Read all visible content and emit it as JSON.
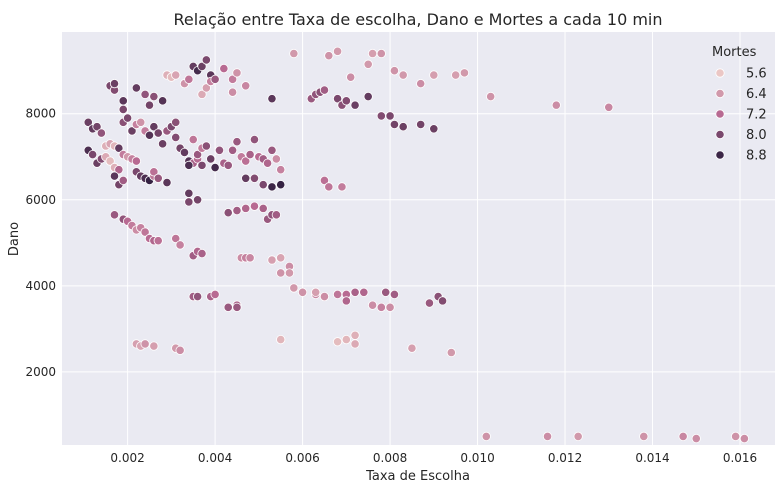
{
  "chart_data": {
    "type": "scatter",
    "title": "Relação entre Taxa de escolha, Dano e Mortes a cada 10 min",
    "xlabel": "Taxa de Escolha",
    "ylabel": "Dano",
    "xlim": [
      0.0005,
      0.0168
    ],
    "ylim": [
      300,
      9900
    ],
    "xticks": [
      0.002,
      0.004,
      0.006,
      0.008,
      0.01,
      0.012,
      0.014,
      0.016
    ],
    "xtick_labels": [
      "0.002",
      "0.004",
      "0.006",
      "0.008",
      "0.010",
      "0.012",
      "0.014",
      "0.016"
    ],
    "yticks": [
      2000,
      4000,
      6000,
      8000
    ],
    "ytick_labels": [
      "2000",
      "4000",
      "6000",
      "8000"
    ],
    "grid": true,
    "legend": {
      "title": "Mortes",
      "placement": "top-right",
      "entries": [
        {
          "label": "5.6",
          "value": 5.6
        },
        {
          "label": "6.4",
          "value": 6.4
        },
        {
          "label": "7.2",
          "value": 7.2
        },
        {
          "label": "8.0",
          "value": 8.0
        },
        {
          "label": "8.8",
          "value": 8.8
        }
      ]
    },
    "colors": {
      "background": "#eaeaf2",
      "grid": "#ffffff",
      "hue_low": "#f1d3cb",
      "hue_high": "#2d1e3e"
    },
    "points": [
      [
        0.0016,
        8650,
        8.0
      ],
      [
        0.0017,
        8550,
        7.9
      ],
      [
        0.0017,
        8700,
        8.2
      ],
      [
        0.0019,
        8300,
        8.4
      ],
      [
        0.0019,
        8100,
        8.0
      ],
      [
        0.0022,
        8600,
        8.3
      ],
      [
        0.0024,
        8450,
        7.7
      ],
      [
        0.0025,
        8200,
        8.1
      ],
      [
        0.0026,
        8400,
        7.8
      ],
      [
        0.0028,
        8300,
        8.5
      ],
      [
        0.0029,
        8900,
        6.0
      ],
      [
        0.003,
        8850,
        5.8
      ],
      [
        0.0031,
        8900,
        6.2
      ],
      [
        0.0033,
        8700,
        6.5
      ],
      [
        0.0034,
        8800,
        7.0
      ],
      [
        0.0035,
        9100,
        8.3
      ],
      [
        0.0036,
        9000,
        8.7
      ],
      [
        0.0037,
        9100,
        8.2
      ],
      [
        0.0038,
        9250,
        8.0
      ],
      [
        0.0039,
        8900,
        8.4
      ],
      [
        0.0037,
        8450,
        6.1
      ],
      [
        0.0038,
        8600,
        6.3
      ],
      [
        0.0039,
        8750,
        6.8
      ],
      [
        0.004,
        8800,
        7.6
      ],
      [
        0.0042,
        9050,
        7.2
      ],
      [
        0.0044,
        8800,
        6.9
      ],
      [
        0.0045,
        8950,
        6.5
      ],
      [
        0.0044,
        8500,
        6.6
      ],
      [
        0.0047,
        8650,
        6.7
      ],
      [
        0.0053,
        8350,
        8.4
      ],
      [
        0.0058,
        9400,
        6.4
      ],
      [
        0.0066,
        9350,
        6.5
      ],
      [
        0.0068,
        9450,
        6.4
      ],
      [
        0.0071,
        8850,
        6.6
      ],
      [
        0.0075,
        9150,
        6.4
      ],
      [
        0.0076,
        9400,
        6.3
      ],
      [
        0.0078,
        9400,
        6.5
      ],
      [
        0.0062,
        8350,
        7.6
      ],
      [
        0.0063,
        8450,
        7.7
      ],
      [
        0.0064,
        8500,
        7.8
      ],
      [
        0.0065,
        8550,
        7.5
      ],
      [
        0.0068,
        8350,
        8.0
      ],
      [
        0.0069,
        8200,
        7.8
      ],
      [
        0.007,
        8300,
        7.9
      ],
      [
        0.0072,
        8200,
        8.2
      ],
      [
        0.0075,
        8400,
        8.3
      ],
      [
        0.0078,
        7950,
        7.9
      ],
      [
        0.008,
        7950,
        8.0
      ],
      [
        0.0081,
        7750,
        8.1
      ],
      [
        0.0083,
        7700,
        8.2
      ],
      [
        0.0081,
        9000,
        6.5
      ],
      [
        0.0083,
        8900,
        6.4
      ],
      [
        0.0087,
        8700,
        6.6
      ],
      [
        0.009,
        8900,
        6.3
      ],
      [
        0.0087,
        7750,
        8.1
      ],
      [
        0.009,
        7650,
        8.2
      ],
      [
        0.0095,
        8900,
        6.3
      ],
      [
        0.0097,
        8950,
        6.4
      ],
      [
        0.0103,
        8400,
        6.5
      ],
      [
        0.0118,
        8200,
        6.6
      ],
      [
        0.013,
        8150,
        6.7
      ],
      [
        0.0011,
        7800,
        8.2
      ],
      [
        0.0012,
        7650,
        8.3
      ],
      [
        0.0013,
        7700,
        8.1
      ],
      [
        0.0014,
        7550,
        7.7
      ],
      [
        0.0015,
        7250,
        6.0
      ],
      [
        0.0016,
        7300,
        6.2
      ],
      [
        0.0017,
        7250,
        5.9
      ],
      [
        0.0018,
        7200,
        8.3
      ],
      [
        0.0011,
        7150,
        8.6
      ],
      [
        0.0012,
        7050,
        8.0
      ],
      [
        0.0013,
        6850,
        8.2
      ],
      [
        0.0014,
        6950,
        7.9
      ],
      [
        0.0015,
        7000,
        6.1
      ],
      [
        0.0016,
        6900,
        5.8
      ],
      [
        0.0017,
        6750,
        6.0
      ],
      [
        0.0018,
        6700,
        7.3
      ],
      [
        0.0017,
        6550,
        8.4
      ],
      [
        0.0018,
        6350,
        8.1
      ],
      [
        0.0019,
        6450,
        7.5
      ],
      [
        0.0019,
        7050,
        6.9
      ],
      [
        0.002,
        7000,
        6.4
      ],
      [
        0.0021,
        6950,
        6.8
      ],
      [
        0.0022,
        6900,
        7.2
      ],
      [
        0.0022,
        6650,
        8.0
      ],
      [
        0.0023,
        6550,
        8.3
      ],
      [
        0.0024,
        6500,
        8.6
      ],
      [
        0.0025,
        6450,
        8.9
      ],
      [
        0.0026,
        6550,
        7.0
      ],
      [
        0.0026,
        6650,
        7.1
      ],
      [
        0.0027,
        6500,
        7.6
      ],
      [
        0.0029,
        6400,
        8.4
      ],
      [
        0.0019,
        7800,
        7.8
      ],
      [
        0.002,
        7900,
        8.0
      ],
      [
        0.0021,
        7600,
        8.2
      ],
      [
        0.0022,
        7750,
        6.8
      ],
      [
        0.0023,
        7800,
        6.5
      ],
      [
        0.0024,
        7600,
        6.9
      ],
      [
        0.0025,
        7500,
        8.5
      ],
      [
        0.0026,
        7700,
        8.3
      ],
      [
        0.0027,
        7550,
        8.1
      ],
      [
        0.0028,
        7300,
        8.2
      ],
      [
        0.0029,
        7600,
        7.6
      ],
      [
        0.003,
        7700,
        8.0
      ],
      [
        0.0031,
        7800,
        7.8
      ],
      [
        0.0031,
        7450,
        7.9
      ],
      [
        0.0032,
        7200,
        8.1
      ],
      [
        0.0033,
        7100,
        8.3
      ],
      [
        0.0034,
        6900,
        8.5
      ],
      [
        0.0035,
        6850,
        7.4
      ],
      [
        0.0036,
        6950,
        7.2
      ],
      [
        0.0037,
        6800,
        8.0
      ],
      [
        0.0034,
        6800,
        8.6
      ],
      [
        0.0036,
        7050,
        7.6
      ],
      [
        0.0035,
        7400,
        7.0
      ],
      [
        0.0037,
        7200,
        6.9
      ],
      [
        0.0038,
        7250,
        7.8
      ],
      [
        0.0039,
        6950,
        8.2
      ],
      [
        0.004,
        6750,
        8.7
      ],
      [
        0.0041,
        7150,
        7.7
      ],
      [
        0.0042,
        6850,
        7.4
      ],
      [
        0.0043,
        6800,
        7.6
      ],
      [
        0.0044,
        7150,
        7.5
      ],
      [
        0.0045,
        7350,
        7.6
      ],
      [
        0.0046,
        7000,
        6.9
      ],
      [
        0.0047,
        6900,
        7.1
      ],
      [
        0.0048,
        7050,
        7.4
      ],
      [
        0.0049,
        7400,
        7.7
      ],
      [
        0.005,
        7000,
        7.2
      ],
      [
        0.0051,
        6950,
        7.5
      ],
      [
        0.0052,
        6850,
        7.3
      ],
      [
        0.0053,
        7150,
        7.6
      ],
      [
        0.0054,
        6950,
        6.6
      ],
      [
        0.0055,
        6700,
        6.8
      ],
      [
        0.0047,
        6500,
        8.3
      ],
      [
        0.0049,
        6500,
        7.9
      ],
      [
        0.0051,
        6350,
        8.0
      ],
      [
        0.0053,
        6300,
        8.8
      ],
      [
        0.0055,
        6350,
        8.9
      ],
      [
        0.0065,
        6450,
        7.1
      ],
      [
        0.0066,
        6300,
        7.0
      ],
      [
        0.0069,
        6300,
        6.9
      ],
      [
        0.0034,
        6150,
        8.3
      ],
      [
        0.0034,
        5950,
        8.0
      ],
      [
        0.0036,
        6000,
        8.1
      ],
      [
        0.0043,
        5700,
        7.8
      ],
      [
        0.0045,
        5750,
        7.5
      ],
      [
        0.0047,
        5800,
        7.3
      ],
      [
        0.0049,
        5850,
        7.2
      ],
      [
        0.0051,
        5800,
        7.4
      ],
      [
        0.0052,
        5550,
        7.6
      ],
      [
        0.0053,
        5650,
        7.7
      ],
      [
        0.0054,
        5650,
        7.5
      ],
      [
        0.0017,
        5650,
        7.6
      ],
      [
        0.0019,
        5550,
        7.7
      ],
      [
        0.002,
        5500,
        7.2
      ],
      [
        0.0021,
        5400,
        6.9
      ],
      [
        0.0022,
        5300,
        6.6
      ],
      [
        0.0023,
        5350,
        6.8
      ],
      [
        0.0024,
        5250,
        7.0
      ],
      [
        0.0025,
        5100,
        7.2
      ],
      [
        0.0026,
        5050,
        7.3
      ],
      [
        0.0027,
        5050,
        7.1
      ],
      [
        0.0031,
        5100,
        7.0
      ],
      [
        0.0032,
        4950,
        6.8
      ],
      [
        0.0035,
        4700,
        7.5
      ],
      [
        0.0036,
        4800,
        7.3
      ],
      [
        0.0037,
        4750,
        7.4
      ],
      [
        0.0046,
        4650,
        6.6
      ],
      [
        0.0047,
        4650,
        6.8
      ],
      [
        0.0048,
        4650,
        6.7
      ],
      [
        0.0053,
        4600,
        6.3
      ],
      [
        0.0055,
        4650,
        6.2
      ],
      [
        0.0055,
        4300,
        6.5
      ],
      [
        0.0057,
        4450,
        6.6
      ],
      [
        0.0057,
        4300,
        6.4
      ],
      [
        0.0058,
        3950,
        6.4
      ],
      [
        0.006,
        3850,
        6.5
      ],
      [
        0.0063,
        3800,
        6.7
      ],
      [
        0.0063,
        3850,
        6.3
      ],
      [
        0.0065,
        3750,
        6.6
      ],
      [
        0.0068,
        3800,
        7.0
      ],
      [
        0.007,
        3800,
        7.2
      ],
      [
        0.007,
        3650,
        7.3
      ],
      [
        0.0072,
        3850,
        7.4
      ],
      [
        0.0074,
        3850,
        7.3
      ],
      [
        0.0076,
        3550,
        6.6
      ],
      [
        0.0078,
        3500,
        6.8
      ],
      [
        0.0079,
        3850,
        7.6
      ],
      [
        0.008,
        3500,
        6.6
      ],
      [
        0.0081,
        3800,
        7.5
      ],
      [
        0.0089,
        3600,
        7.6
      ],
      [
        0.0091,
        3750,
        7.8
      ],
      [
        0.0092,
        3650,
        7.9
      ],
      [
        0.0035,
        3750,
        7.5
      ],
      [
        0.0036,
        3750,
        7.7
      ],
      [
        0.0039,
        3750,
        7.4
      ],
      [
        0.004,
        3800,
        7.2
      ],
      [
        0.0043,
        3500,
        7.6
      ],
      [
        0.0045,
        3550,
        7.4
      ],
      [
        0.0045,
        3500,
        7.6
      ],
      [
        0.0022,
        2650,
        6.3
      ],
      [
        0.0023,
        2600,
        6.2
      ],
      [
        0.0024,
        2650,
        6.5
      ],
      [
        0.0026,
        2600,
        6.3
      ],
      [
        0.0031,
        2550,
        6.4
      ],
      [
        0.0032,
        2500,
        6.6
      ],
      [
        0.0055,
        2750,
        5.9
      ],
      [
        0.0068,
        2700,
        5.8
      ],
      [
        0.007,
        2750,
        5.9
      ],
      [
        0.0072,
        2850,
        6.0
      ],
      [
        0.0072,
        2650,
        6.1
      ],
      [
        0.0085,
        2550,
        6.3
      ],
      [
        0.0094,
        2450,
        6.4
      ],
      [
        0.0102,
        500,
        6.5
      ],
      [
        0.0116,
        500,
        6.6
      ],
      [
        0.0123,
        500,
        6.4
      ],
      [
        0.0138,
        500,
        6.5
      ],
      [
        0.0147,
        500,
        6.7
      ],
      [
        0.015,
        450,
        6.6
      ],
      [
        0.0159,
        500,
        6.5
      ],
      [
        0.0161,
        450,
        6.6
      ]
    ]
  }
}
